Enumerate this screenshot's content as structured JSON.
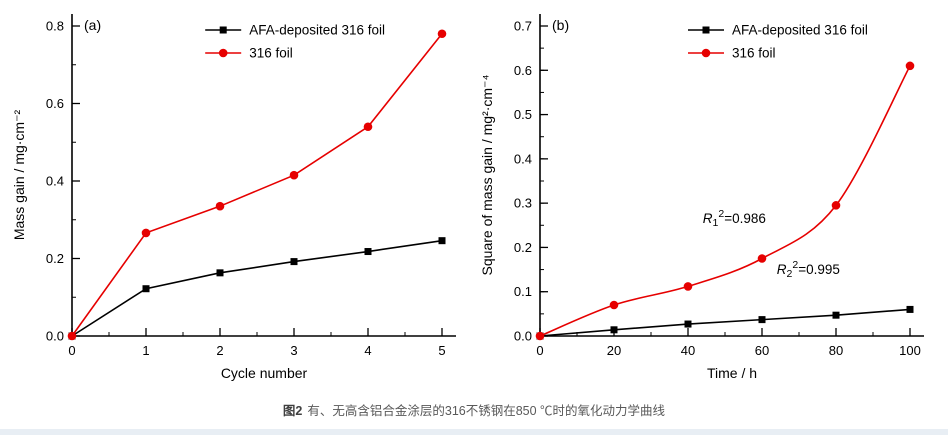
{
  "page": {
    "caption": {
      "tag": "图2",
      "text": "有、无高含铝合金涂层的316不锈钢在850 ℃时的氧化动力学曲线"
    }
  },
  "colors": {
    "afa_series": "#000000",
    "foil_series": "#e60000",
    "axis": "#000000",
    "footer_strip": "#e8eef4"
  },
  "chart_data": [
    {
      "type": "line",
      "panel_label": "(a)",
      "xlabel": "Cycle number",
      "ylabel": "Mass gain / mg·cm⁻²",
      "xlim": [
        0,
        5
      ],
      "ylim": [
        0,
        0.8
      ],
      "xticks": [
        0,
        1,
        2,
        3,
        4,
        5
      ],
      "yticks": [
        0.0,
        0.2,
        0.4,
        0.6,
        0.8
      ],
      "x_minor": 0.5,
      "y_minor": 0.1,
      "ytick_decimals": 1,
      "legend_fx": 0.36,
      "legend_position": "top-center",
      "grid": false,
      "series": [
        {
          "name": "AFA-deposited 316 foil",
          "color": "#000000",
          "marker": "square",
          "smooth": false,
          "x": [
            0,
            1,
            2,
            3,
            4,
            5
          ],
          "y": [
            0,
            0.122,
            0.163,
            0.192,
            0.218,
            0.246
          ]
        },
        {
          "name": "316 foil",
          "color": "#e60000",
          "marker": "circle",
          "smooth": false,
          "x": [
            0,
            1,
            2,
            3,
            4,
            5
          ],
          "y": [
            0,
            0.266,
            0.335,
            0.415,
            0.54,
            0.78
          ]
        }
      ],
      "annotations": []
    },
    {
      "type": "line",
      "panel_label": "(b)",
      "xlabel": "Time / h",
      "ylabel": "Square of mass gain / mg²·cm⁻⁴",
      "xlim": [
        0,
        100
      ],
      "ylim": [
        0,
        0.7
      ],
      "xticks": [
        0,
        20,
        40,
        60,
        80,
        100
      ],
      "yticks": [
        0.0,
        0.1,
        0.2,
        0.3,
        0.4,
        0.5,
        0.6,
        0.7
      ],
      "x_minor": 10,
      "y_minor": 0.05,
      "ytick_decimals": 1,
      "legend_fx": 0.4,
      "legend_position": "top-right",
      "grid": false,
      "series": [
        {
          "name": "AFA-deposited 316 foil",
          "color": "#000000",
          "marker": "square",
          "smooth": false,
          "x": [
            0,
            20,
            40,
            60,
            80,
            100
          ],
          "y": [
            0,
            0.014,
            0.027,
            0.037,
            0.047,
            0.06
          ]
        },
        {
          "name": "316 foil",
          "color": "#e60000",
          "marker": "circle",
          "smooth": true,
          "x": [
            0,
            20,
            40,
            60,
            80,
            100
          ],
          "y": [
            0,
            0.07,
            0.112,
            0.175,
            0.295,
            0.61
          ]
        }
      ],
      "annotations": [
        {
          "var": "R",
          "sub": "1",
          "sup": "2",
          "text": "=0.986",
          "x": 44,
          "y": 0.255
        },
        {
          "var": "R",
          "sub": "2",
          "sup": "2",
          "text": "=0.995",
          "x": 64,
          "y": 0.14
        }
      ]
    }
  ]
}
